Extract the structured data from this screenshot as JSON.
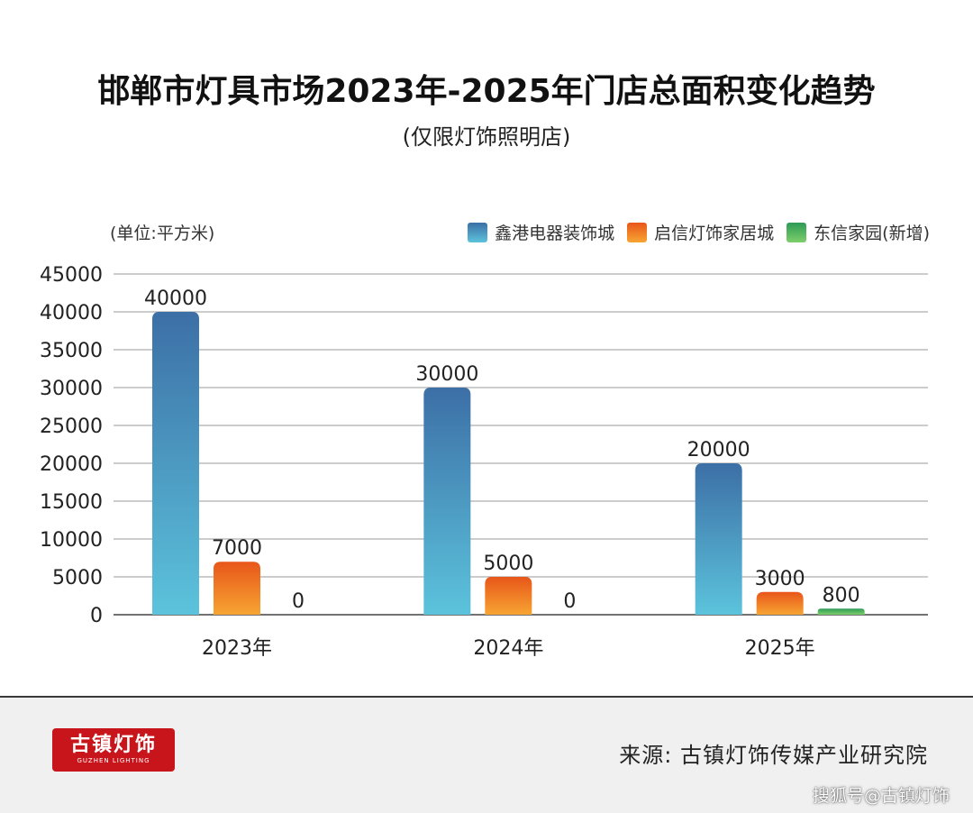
{
  "title": "邯郸市灯具市场2023年-2025年门店总面积变化趋势",
  "subtitle": "(仅限灯饰照明店)",
  "unit_label": "(单位:平方米)",
  "chart_data": {
    "type": "bar",
    "title": "邯郸市灯具市场2023年-2025年门店总面积变化趋势",
    "subtitle": "(仅限灯饰照明店)",
    "ylabel": "(单位:平方米)",
    "categories": [
      "2023年",
      "2024年",
      "2025年"
    ],
    "ylim": [
      0,
      45000
    ],
    "yticks": [
      0,
      5000,
      10000,
      15000,
      20000,
      25000,
      30000,
      35000,
      40000,
      45000
    ],
    "grid": true,
    "legend_position": "top-right",
    "series": [
      {
        "name": "鑫港电器装饰城",
        "values": [
          40000,
          30000,
          20000
        ],
        "color_top": "#3c6fa6",
        "color_bottom": "#5cc3dc"
      },
      {
        "name": "启信灯饰家居城",
        "values": [
          7000,
          5000,
          3000
        ],
        "color_top": "#e8561a",
        "color_bottom": "#f7a532"
      },
      {
        "name": "东信家园(新增)",
        "values": [
          0,
          0,
          800
        ],
        "color_top": "#2e9b57",
        "color_bottom": "#7ecf6a"
      }
    ]
  },
  "footer": {
    "logo_text": "古镇灯饰",
    "logo_subtext": "GUZHEN LIGHTING",
    "source": "来源: 古镇灯饰传媒产业研究院",
    "watermark": "搜狐号@古镇灯饰"
  }
}
